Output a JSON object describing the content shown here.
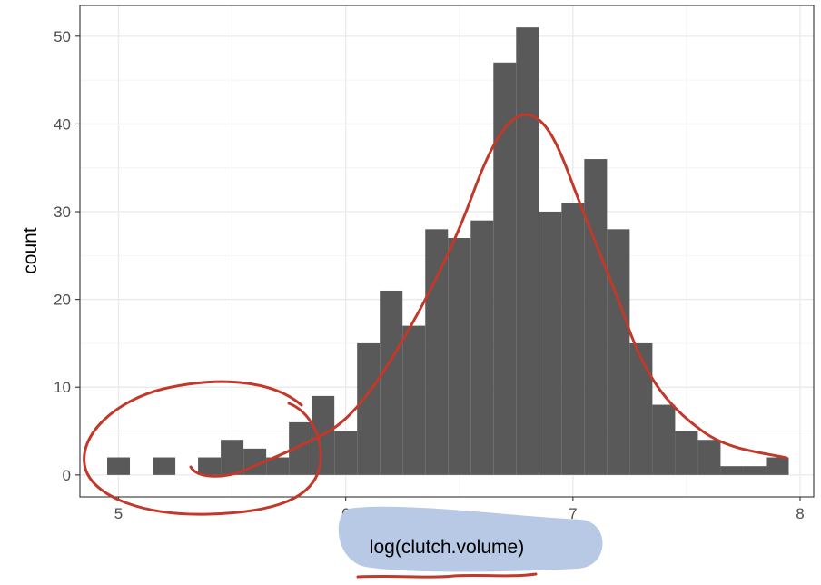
{
  "chart_data": {
    "type": "histogram",
    "xlabel": "log(clutch.volume)",
    "ylabel": "count",
    "xlim": [
      4.83,
      8.06
    ],
    "ylim": [
      -2.5,
      53.5
    ],
    "xticks": [
      "5",
      "6",
      "7",
      "8"
    ],
    "yticks": [
      "0",
      "10",
      "20",
      "30",
      "40",
      "50"
    ],
    "bin_width": 0.1,
    "bins": [
      {
        "x": 5.0,
        "count": 2
      },
      {
        "x": 5.1,
        "count": 0
      },
      {
        "x": 5.2,
        "count": 2
      },
      {
        "x": 5.3,
        "count": 0
      },
      {
        "x": 5.4,
        "count": 2
      },
      {
        "x": 5.5,
        "count": 4
      },
      {
        "x": 5.6,
        "count": 3
      },
      {
        "x": 5.7,
        "count": 2
      },
      {
        "x": 5.8,
        "count": 6
      },
      {
        "x": 5.9,
        "count": 9
      },
      {
        "x": 6.0,
        "count": 5
      },
      {
        "x": 6.1,
        "count": 15
      },
      {
        "x": 6.2,
        "count": 21
      },
      {
        "x": 6.3,
        "count": 17
      },
      {
        "x": 6.4,
        "count": 28
      },
      {
        "x": 6.5,
        "count": 27
      },
      {
        "x": 6.6,
        "count": 29
      },
      {
        "x": 6.7,
        "count": 47
      },
      {
        "x": 6.8,
        "count": 51
      },
      {
        "x": 6.9,
        "count": 30
      },
      {
        "x": 7.0,
        "count": 31
      },
      {
        "x": 7.1,
        "count": 36
      },
      {
        "x": 7.2,
        "count": 28
      },
      {
        "x": 7.3,
        "count": 15
      },
      {
        "x": 7.4,
        "count": 8
      },
      {
        "x": 7.5,
        "count": 5
      },
      {
        "x": 7.6,
        "count": 4
      },
      {
        "x": 7.7,
        "count": 1
      },
      {
        "x": 7.8,
        "count": 1
      },
      {
        "x": 7.9,
        "count": 2
      }
    ],
    "grid": true,
    "theme": "bw",
    "colors": {
      "bar": "#595959",
      "grid_major": "#ebebeb",
      "grid_minor": "#f4f4f4",
      "panel_border": "#333333",
      "annotation": "#c0392b",
      "highlight": "#b8c9e5"
    },
    "annotations": [
      {
        "kind": "freehand-curve",
        "description": "hand-drawn density curve over histogram"
      },
      {
        "kind": "freehand-circle",
        "description": "circle around left-tail bars"
      },
      {
        "kind": "highlight",
        "description": "blue highlighter over x-axis title"
      },
      {
        "kind": "underline",
        "description": "red underline beneath x-axis title"
      }
    ]
  }
}
